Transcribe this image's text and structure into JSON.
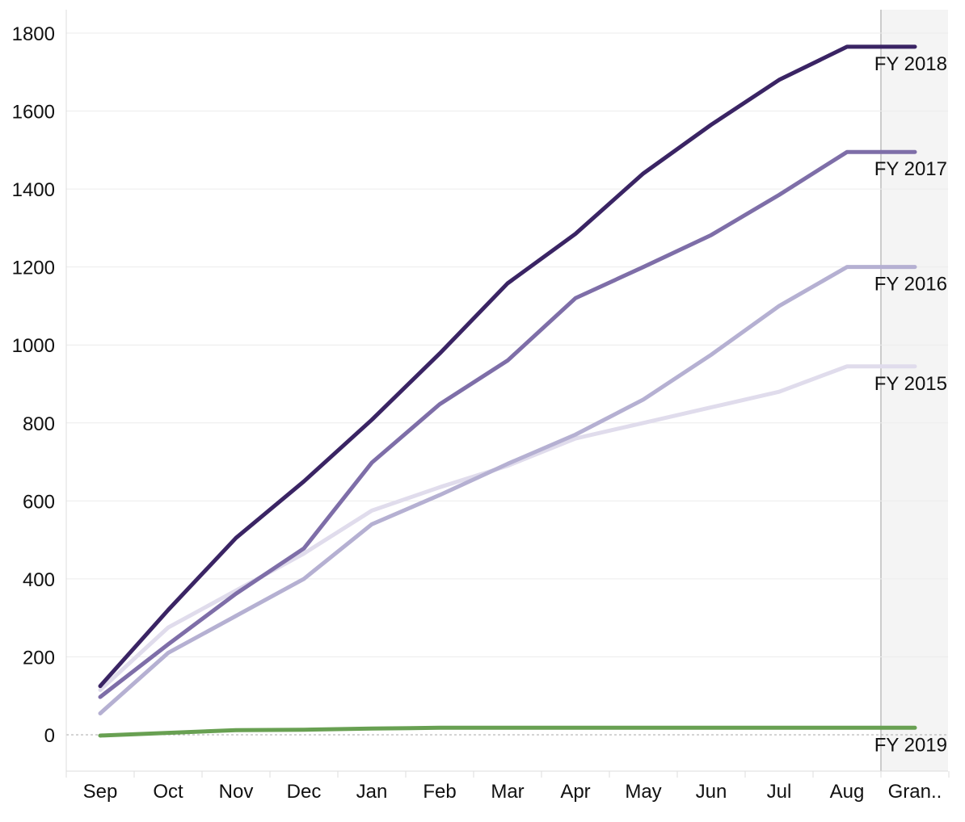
{
  "chart_data": {
    "type": "line",
    "categories": [
      "Sep",
      "Oct",
      "Nov",
      "Dec",
      "Jan",
      "Feb",
      "Mar",
      "Apr",
      "May",
      "Jun",
      "Jul",
      "Aug",
      "Gran.."
    ],
    "ylim": [
      -100,
      1850
    ],
    "yticks": [
      0,
      200,
      400,
      600,
      800,
      1000,
      1200,
      1400,
      1600,
      1800
    ],
    "grid": true,
    "grand_total_band": "Gran..",
    "series": [
      {
        "name": "FY 2015",
        "color": "#e0dcec",
        "values": [
          115,
          275,
          370,
          465,
          575,
          635,
          690,
          760,
          800,
          840,
          880,
          945,
          945
        ]
      },
      {
        "name": "FY 2016",
        "color": "#b5b0d2",
        "values": [
          55,
          210,
          305,
          400,
          540,
          615,
          695,
          770,
          860,
          975,
          1100,
          1200,
          1200
        ]
      },
      {
        "name": "FY 2017",
        "color": "#7e6ea8",
        "values": [
          97,
          232,
          362,
          478,
          698,
          848,
          960,
          1120,
          1200,
          1282,
          1385,
          1495,
          1495
        ]
      },
      {
        "name": "FY 2018",
        "color": "#3a2464",
        "values": [
          125,
          320,
          505,
          650,
          808,
          978,
          1158,
          1285,
          1440,
          1565,
          1680,
          1765,
          1765
        ]
      },
      {
        "name": "FY 2019",
        "color": "#68a052",
        "values": [
          -2,
          5,
          12,
          13,
          16,
          18,
          18,
          18,
          18,
          18,
          18,
          18,
          18
        ]
      }
    ]
  }
}
